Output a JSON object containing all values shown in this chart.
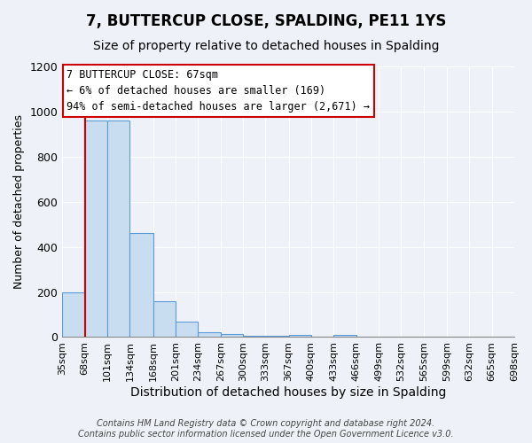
{
  "title": "7, BUTTERCUP CLOSE, SPALDING, PE11 1YS",
  "subtitle": "Size of property relative to detached houses in Spalding",
  "xlabel": "Distribution of detached houses by size in Spalding",
  "ylabel": "Number of detached properties",
  "bin_edges": [
    35,
    68,
    101,
    134,
    168,
    201,
    234,
    267,
    300,
    333,
    367,
    400,
    433,
    466,
    499,
    532,
    565,
    599,
    632,
    665,
    698
  ],
  "bin_labels": [
    "35sqm",
    "68sqm",
    "101sqm",
    "134sqm",
    "168sqm",
    "201sqm",
    "234sqm",
    "267sqm",
    "300sqm",
    "333sqm",
    "367sqm",
    "400sqm",
    "433sqm",
    "466sqm",
    "499sqm",
    "532sqm",
    "565sqm",
    "599sqm",
    "632sqm",
    "665sqm",
    "698sqm"
  ],
  "bar_heights": [
    200,
    960,
    960,
    460,
    160,
    70,
    20,
    15,
    5,
    5,
    10,
    0,
    10,
    0,
    0,
    0,
    0,
    0,
    0,
    0
  ],
  "bar_color": "#c9ddf0",
  "bar_edge_color": "#5b9bd5",
  "ylim": [
    0,
    1200
  ],
  "yticks": [
    0,
    200,
    400,
    600,
    800,
    1000,
    1200
  ],
  "property_line_x": 68,
  "property_line_color": "#cc0000",
  "annotation_line1": "7 BUTTERCUP CLOSE: 67sqm",
  "annotation_line2": "← 6% of detached houses are smaller (169)",
  "annotation_line3": "94% of semi-detached houses are larger (2,671) →",
  "annotation_box_color": "#ffffff",
  "annotation_box_edge": "#cc0000",
  "footer_text": "Contains HM Land Registry data © Crown copyright and database right 2024.\nContains public sector information licensed under the Open Government Licence v3.0.",
  "background_color": "#eef2f8",
  "plot_bg_color": "#eef2f8",
  "grid_color": "#ffffff",
  "title_fontsize": 12,
  "subtitle_fontsize": 10,
  "ylabel_fontsize": 9,
  "xlabel_fontsize": 10,
  "tick_fontsize": 8,
  "footer_fontsize": 7
}
